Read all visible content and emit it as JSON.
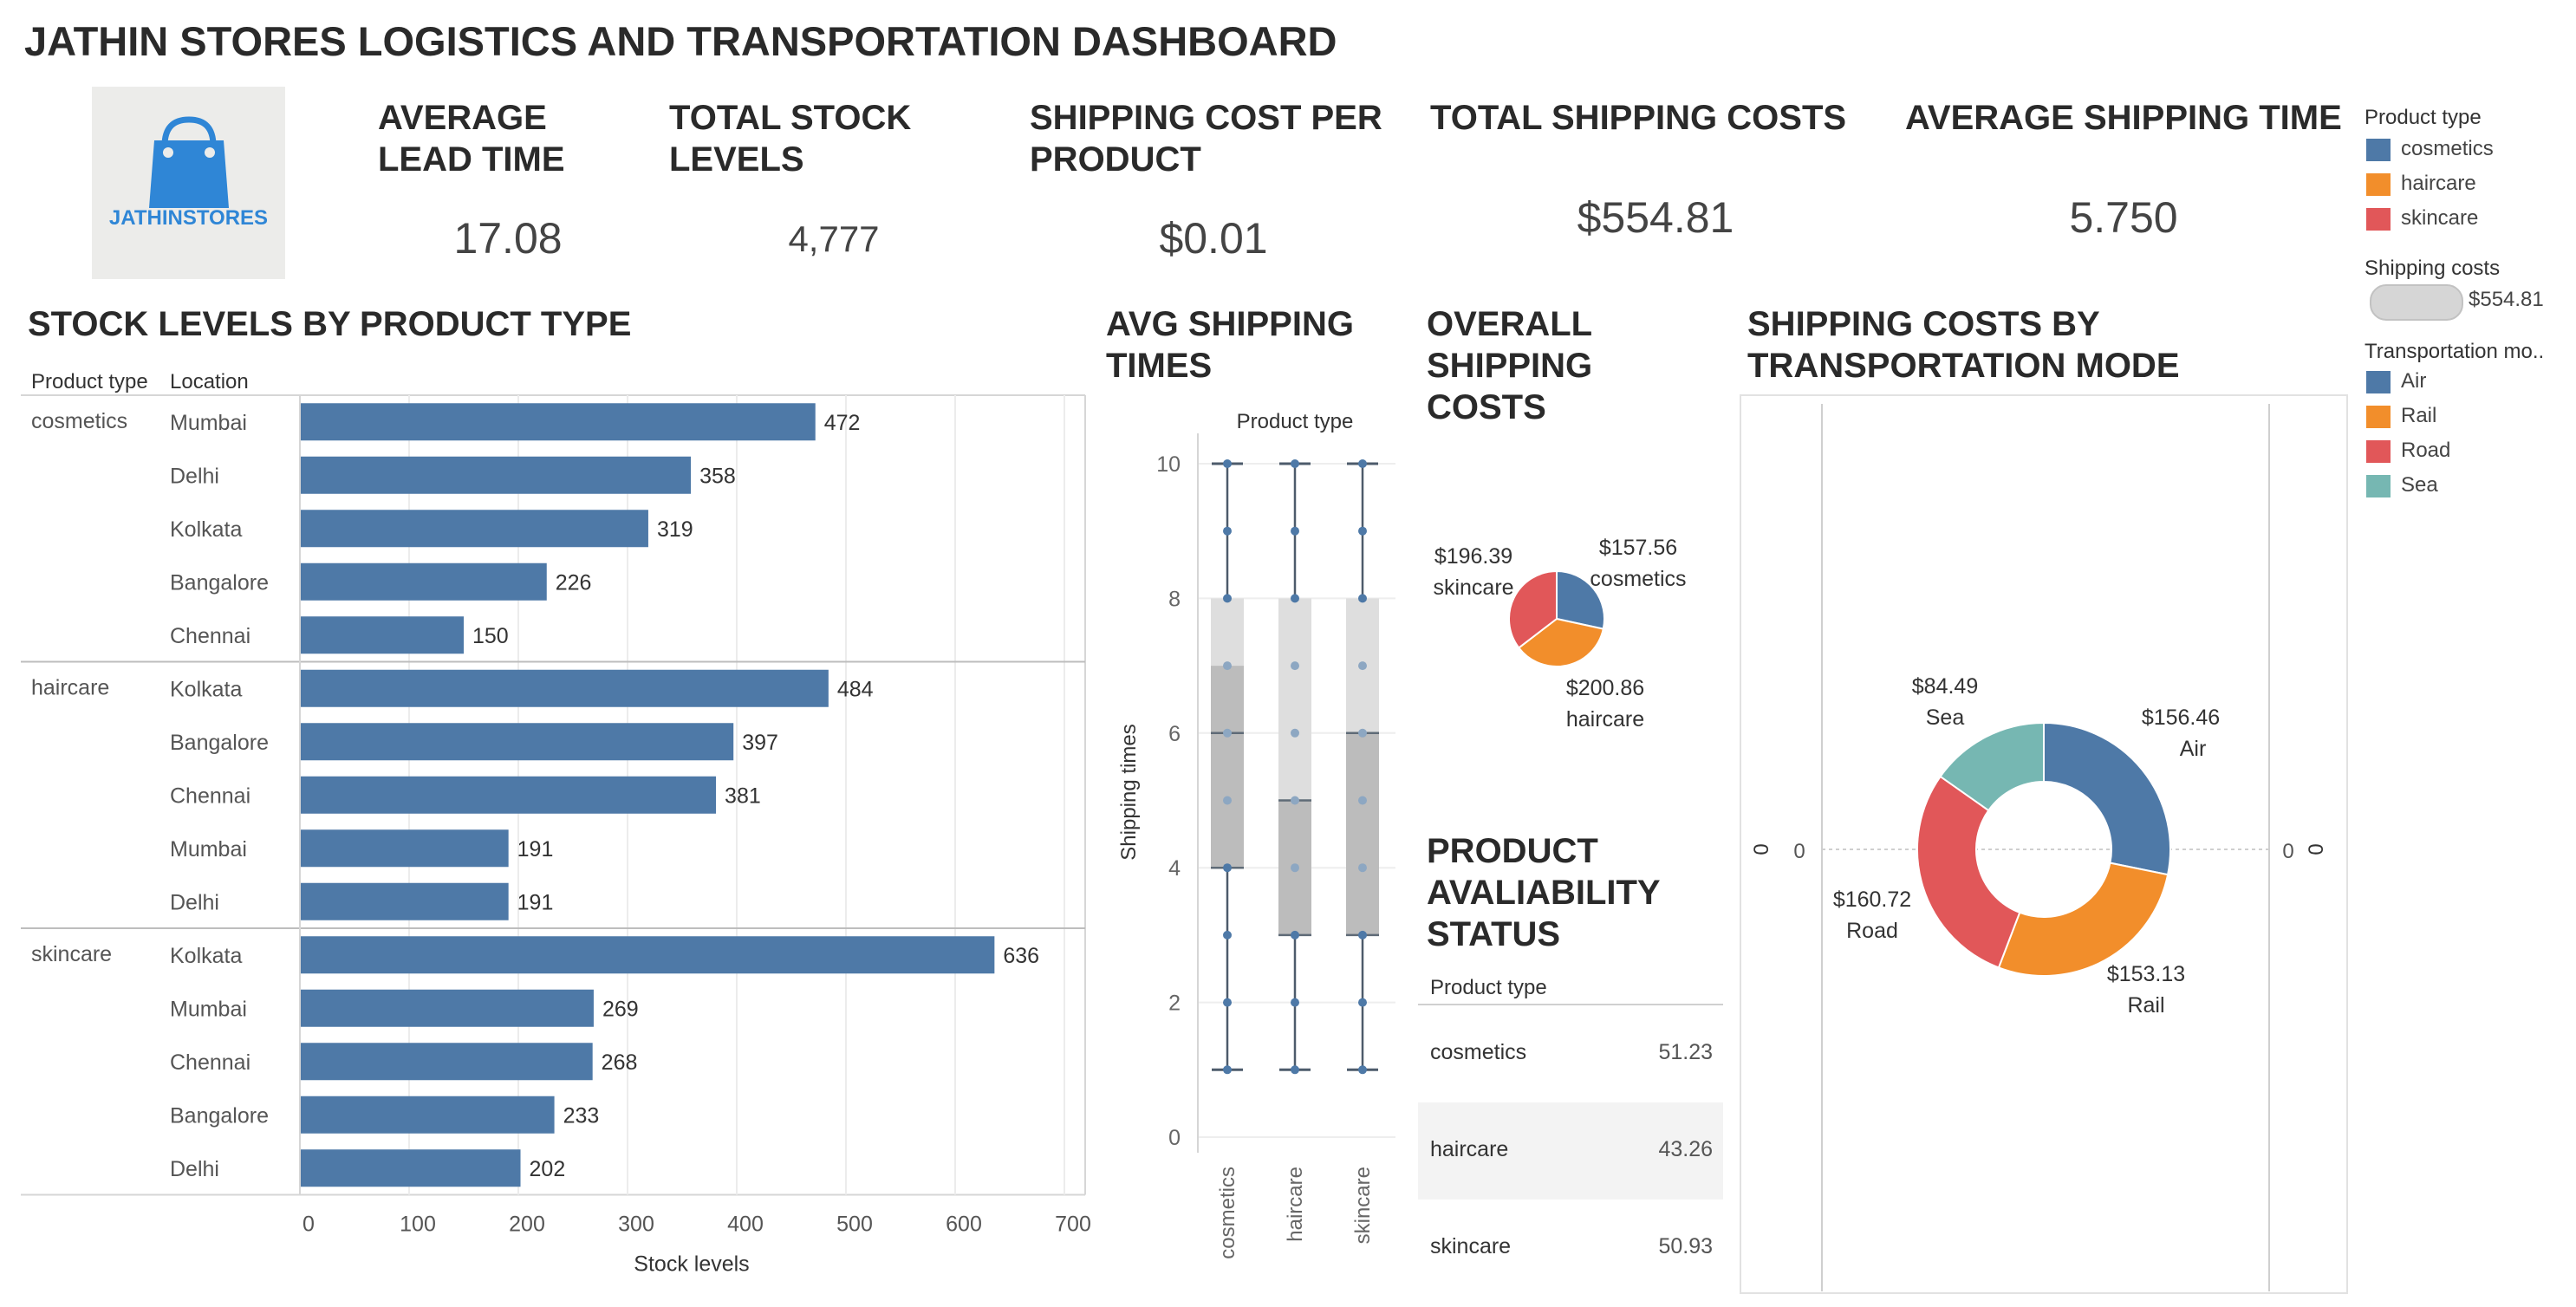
{
  "dashboard": {
    "title": "JATHIN STORES LOGISTICS AND TRANSPORTATION DASHBOARD",
    "logo_text": "JATHINSTORES"
  },
  "kpis": [
    {
      "label": "AVERAGE LEAD TIME",
      "value": "17.08"
    },
    {
      "label": "TOTAL STOCK LEVELS",
      "value": "4,777"
    },
    {
      "label": "SHIPPING COST PER PRODUCT",
      "value": "$0.01"
    },
    {
      "label": "TOTAL SHIPPING COSTS",
      "value": "$554.81"
    },
    {
      "label": "AVERAGE SHIPPING TIME",
      "value": "5.750"
    }
  ],
  "legend": {
    "product_type_title": "Product type",
    "product_types": [
      {
        "name": "cosmetics",
        "color": "#4e79a7"
      },
      {
        "name": "haircare",
        "color": "#f28e2b"
      },
      {
        "name": "skincare",
        "color": "#e15759"
      }
    ],
    "shipping_costs_title": "Shipping costs",
    "shipping_costs_value": "$554.81",
    "transport_title": "Transportation mo..",
    "modes": [
      {
        "name": "Air",
        "color": "#4e79a7"
      },
      {
        "name": "Rail",
        "color": "#f28e2b"
      },
      {
        "name": "Road",
        "color": "#e15759"
      },
      {
        "name": "Sea",
        "color": "#76b7b2"
      }
    ]
  },
  "sections": {
    "stock_title": "STOCK LEVELS BY PRODUCT TYPE",
    "avg_ship_title": "AVG SHIPPING TIMES",
    "overall_title": "OVERALL SHIPPING COSTS",
    "mode_title": "SHIPPING COSTS BY TRANSPORTATION MODE",
    "avail_title": "PRODUCT AVALIABILITY STATUS"
  },
  "chart_data": [
    {
      "type": "bar",
      "title": "STOCK LEVELS BY PRODUCT TYPE",
      "column_headers": [
        "Product type",
        "Location"
      ],
      "xlabel": "Stock levels",
      "xlim": [
        0,
        700
      ],
      "xticks": [
        "0",
        "100",
        "200",
        "300",
        "400",
        "500",
        "600",
        "700"
      ],
      "color": "#4e79a7",
      "groups": [
        {
          "name": "cosmetics",
          "bars": [
            {
              "location": "Mumbai",
              "value": 472
            },
            {
              "location": "Delhi",
              "value": 358
            },
            {
              "location": "Kolkata",
              "value": 319
            },
            {
              "location": "Bangalore",
              "value": 226
            },
            {
              "location": "Chennai",
              "value": 150
            }
          ]
        },
        {
          "name": "haircare",
          "bars": [
            {
              "location": "Kolkata",
              "value": 484
            },
            {
              "location": "Bangalore",
              "value": 397
            },
            {
              "location": "Chennai",
              "value": 381
            },
            {
              "location": "Mumbai",
              "value": 191
            },
            {
              "location": "Delhi",
              "value": 191
            }
          ]
        },
        {
          "name": "skincare",
          "bars": [
            {
              "location": "Kolkata",
              "value": 636
            },
            {
              "location": "Mumbai",
              "value": 269
            },
            {
              "location": "Chennai",
              "value": 268
            },
            {
              "location": "Bangalore",
              "value": 233
            },
            {
              "location": "Delhi",
              "value": 202
            }
          ]
        }
      ]
    },
    {
      "type": "boxplot",
      "title": "AVG SHIPPING TIMES",
      "header": "Product type",
      "ylabel": "Shipping times",
      "ylim": [
        0,
        10
      ],
      "yticks": [
        "0",
        "2",
        "4",
        "6",
        "8",
        "10"
      ],
      "categories": [
        "cosmetics",
        "haircare",
        "skincare"
      ],
      "boxes": [
        {
          "min": 1,
          "q1": 4,
          "median": 6,
          "q3": 8,
          "max": 10,
          "lower_shade_top": 7,
          "points": [
            1,
            2,
            3,
            4,
            5,
            6,
            7,
            8,
            9,
            10
          ]
        },
        {
          "min": 1,
          "q1": 3,
          "median": 5,
          "q3": 8,
          "max": 10,
          "lower_shade_top": 5,
          "points": [
            1,
            2,
            3,
            4,
            5,
            6,
            7,
            8,
            9,
            10
          ]
        },
        {
          "min": 1,
          "q1": 3,
          "median": 6,
          "q3": 8,
          "max": 10,
          "lower_shade_top": 6,
          "points": [
            1,
            2,
            3,
            4,
            5,
            6,
            7,
            8,
            9,
            10
          ]
        }
      ]
    },
    {
      "type": "pie",
      "title": "OVERALL SHIPPING COSTS",
      "slices": [
        {
          "name": "cosmetics",
          "value": 157.56,
          "label": "$157.56",
          "color": "#4e79a7"
        },
        {
          "name": "haircare",
          "value": 200.86,
          "label": "$200.86",
          "color": "#f28e2b"
        },
        {
          "name": "skincare",
          "value": 196.39,
          "label": "$196.39",
          "color": "#e15759"
        }
      ]
    },
    {
      "type": "pie",
      "title": "SHIPPING COSTS BY TRANSPORTATION MODE",
      "donut": true,
      "axis_labels": [
        "0",
        "0"
      ],
      "slices": [
        {
          "name": "Air",
          "value": 156.46,
          "label": "$156.46",
          "color": "#4e79a7"
        },
        {
          "name": "Rail",
          "value": 153.13,
          "label": "$153.13",
          "color": "#f28e2b"
        },
        {
          "name": "Road",
          "value": 160.72,
          "label": "$160.72",
          "color": "#e15759"
        },
        {
          "name": "Sea",
          "value": 84.49,
          "label": "$84.49",
          "color": "#76b7b2"
        }
      ]
    },
    {
      "type": "table",
      "title": "PRODUCT AVALIABILITY STATUS",
      "header": "Product type",
      "rows": [
        {
          "name": "cosmetics",
          "value": "51.23"
        },
        {
          "name": "haircare",
          "value": "43.26"
        },
        {
          "name": "skincare",
          "value": "50.93"
        }
      ]
    }
  ]
}
